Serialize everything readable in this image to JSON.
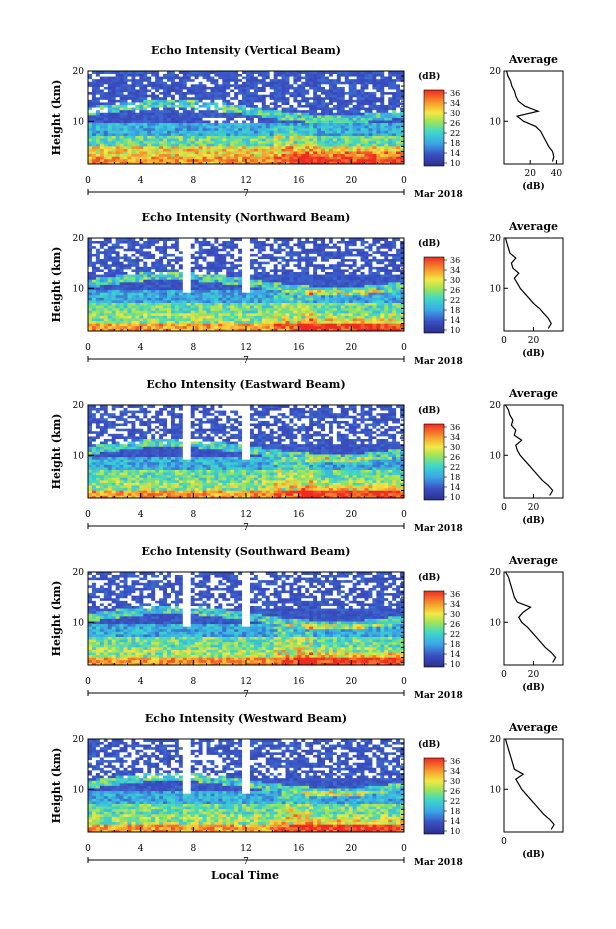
{
  "shared": {
    "ylabel": "Height (km)",
    "time_ticks": [
      "0",
      "4",
      "8",
      "12",
      "16",
      "20",
      "0"
    ],
    "height_ticks": [
      "20",
      "10"
    ],
    "date_marker": "7",
    "month_label": "Mar 2018",
    "xlabel": "Local Time",
    "colorbar_unit": "(dB)",
    "colorbar_ticks": [
      "36",
      "34",
      "30",
      "26",
      "22",
      "18",
      "14",
      "10"
    ],
    "avg_title": "Average",
    "avg_unit": "(dB)"
  },
  "chart_data": [
    {
      "type": "heatmap",
      "title": "Echo Intensity (Vertical Beam)",
      "xlabel": "Local Time",
      "ylabel": "Height (km)",
      "xlim": [
        0,
        24
      ],
      "ylim": [
        1.5,
        20
      ],
      "colorbar": {
        "label": "(dB)",
        "range": [
          10,
          38
        ]
      },
      "average": {
        "type": "line",
        "title": "Average",
        "xlabel": "(dB)",
        "xticks": [
          "20",
          "40"
        ],
        "xlim": [
          0,
          45
        ],
        "heights": [
          2,
          3,
          4,
          5,
          6,
          7,
          8,
          9,
          10,
          11,
          12,
          13,
          14,
          15,
          16,
          17,
          18,
          19,
          20
        ],
        "values": [
          37,
          38,
          37,
          34,
          32,
          30,
          28,
          24,
          15,
          10,
          26,
          16,
          11,
          9,
          8,
          6,
          5,
          3,
          2
        ]
      }
    },
    {
      "type": "heatmap",
      "title": "Echo Intensity (Northward Beam)",
      "xlabel": "Local Time",
      "ylabel": "Height (km)",
      "xlim": [
        0,
        24
      ],
      "ylim": [
        1.5,
        20
      ],
      "colorbar": {
        "label": "(dB)",
        "range": [
          10,
          38
        ]
      },
      "average": {
        "type": "line",
        "title": "Average",
        "xlabel": "(dB)",
        "xticks": [
          "0",
          "20"
        ],
        "xlim": [
          0,
          40
        ],
        "heights": [
          2,
          3,
          4,
          5,
          6,
          7,
          8,
          9,
          10,
          11,
          12,
          13,
          14,
          15,
          16,
          17,
          18,
          19,
          20
        ],
        "values": [
          30,
          32,
          30,
          27,
          24,
          20,
          17,
          14,
          11,
          9,
          7,
          10,
          6,
          5,
          8,
          4,
          3,
          2,
          1
        ]
      }
    },
    {
      "type": "heatmap",
      "title": "Echo Intensity (Eastward Beam)",
      "xlabel": "Local Time",
      "ylabel": "Height (km)",
      "xlim": [
        0,
        24
      ],
      "ylim": [
        1.5,
        20
      ],
      "colorbar": {
        "label": "(dB)",
        "range": [
          10,
          38
        ]
      },
      "average": {
        "type": "line",
        "title": "Average",
        "xlabel": "(dB)",
        "xticks": [
          "0",
          "20"
        ],
        "xlim": [
          0,
          40
        ],
        "heights": [
          2,
          3,
          4,
          5,
          6,
          7,
          8,
          9,
          10,
          11,
          12,
          13,
          14,
          15,
          16,
          17,
          18,
          19,
          20
        ],
        "values": [
          31,
          33,
          30,
          26,
          23,
          20,
          17,
          14,
          11,
          9,
          8,
          12,
          7,
          8,
          5,
          6,
          4,
          3,
          1
        ]
      }
    },
    {
      "type": "heatmap",
      "title": "Echo Intensity (Southward Beam)",
      "xlabel": "Local Time",
      "ylabel": "Height (km)",
      "xlim": [
        0,
        24
      ],
      "ylim": [
        1.5,
        20
      ],
      "colorbar": {
        "label": "(dB)",
        "range": [
          10,
          38
        ]
      },
      "average": {
        "type": "line",
        "title": "Average",
        "xlabel": "(dB)",
        "xticks": [
          "0",
          "20"
        ],
        "xlim": [
          0,
          40
        ],
        "heights": [
          2,
          3,
          4,
          5,
          6,
          7,
          8,
          9,
          10,
          11,
          12,
          13,
          14,
          15,
          16,
          17,
          18,
          19,
          20
        ],
        "values": [
          33,
          35,
          32,
          28,
          25,
          22,
          19,
          16,
          12,
          10,
          13,
          18,
          9,
          7,
          6,
          5,
          4,
          3,
          1
        ]
      }
    },
    {
      "type": "heatmap",
      "title": "Echo Intensity (Westward Beam)",
      "xlabel": "Local Time",
      "ylabel": "Height (km)",
      "xlim": [
        0,
        24
      ],
      "ylim": [
        1.5,
        20
      ],
      "colorbar": {
        "label": "(dB)",
        "range": [
          10,
          38
        ]
      },
      "average": {
        "type": "line",
        "title": "Average",
        "xlabel": "(dB)",
        "xticks": [
          "0"
        ],
        "xlim": [
          0,
          40
        ],
        "heights": [
          2,
          3,
          4,
          5,
          6,
          7,
          8,
          9,
          10,
          11,
          12,
          13,
          14,
          15,
          16,
          17,
          18,
          19,
          20
        ],
        "values": [
          32,
          34,
          31,
          27,
          24,
          21,
          18,
          15,
          12,
          10,
          8,
          13,
          7,
          6,
          5,
          4,
          3,
          2,
          1
        ]
      }
    }
  ]
}
